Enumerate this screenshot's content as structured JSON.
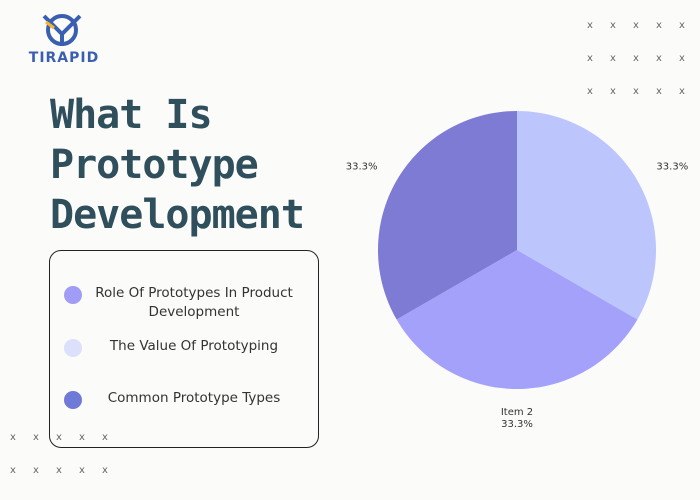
{
  "logo": {
    "text": "TIRAPID"
  },
  "title": {
    "lines": [
      "What Is",
      "Prototype",
      "Development"
    ]
  },
  "legend": [
    {
      "label": "Role Of Prototypes In Product Development",
      "color": "#a19cf5"
    },
    {
      "label": "The Value Of Prototyping",
      "color": "#dde0fb"
    },
    {
      "label": "Common Prototype Types",
      "color": "#6e7ad6"
    }
  ],
  "decor": {
    "mark": "x"
  },
  "chart_data": {
    "type": "pie",
    "slices": [
      {
        "name": "",
        "value": 33.3,
        "label": "33.3%",
        "color": "#bdc6fc"
      },
      {
        "name": "Item 2",
        "value": 33.3,
        "label": "33.3%",
        "color": "#a4a1fb"
      },
      {
        "name": "",
        "value": 33.3,
        "label": "33.3%",
        "color": "#7e7bd4"
      }
    ]
  }
}
